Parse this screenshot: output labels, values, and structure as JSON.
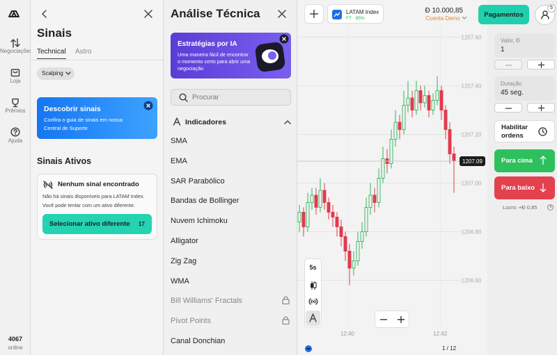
{
  "sidebar": {
    "nav": [
      "Negociações",
      "Loja",
      "Prêmios",
      "Ajuda"
    ],
    "online_count": "4067",
    "online_label": "online"
  },
  "signals": {
    "title": "Sinais",
    "tabs": [
      "Technical",
      "Astro"
    ],
    "filter": "Scalping",
    "banner_title": "Descobrir sinais",
    "banner_text": "Confira o guia de sinais em nossa Central de Suporte",
    "section": "Sinais Ativos",
    "empty_title": "Nenhum sinal encontrado",
    "empty_text": "Não há sinais disponíveis para LATAM Index. Você pode tentar com um ativo diferente.",
    "button": "Selecionar ativo diferente",
    "button_badge": "17"
  },
  "analysis": {
    "title": "Análise Técnica",
    "promo_title": "Estratégias por IA",
    "promo_text": "Uma maneira fácil de encontrar o momento certo para abrir uma negociação",
    "search_placeholder": "Procurar",
    "section": "Indicadores",
    "indicators": [
      {
        "label": "SMA",
        "locked": false
      },
      {
        "label": "EMA",
        "locked": false
      },
      {
        "label": "SAR Parabólico",
        "locked": false
      },
      {
        "label": "Bandas de Bollinger",
        "locked": false
      },
      {
        "label": "Nuvem Ichimoku",
        "locked": false
      },
      {
        "label": "Alligator",
        "locked": false
      },
      {
        "label": "Zig Zag",
        "locked": false
      },
      {
        "label": "WMA",
        "locked": false
      },
      {
        "label": "Bill Williams' Fractals",
        "locked": true
      },
      {
        "label": "Pivot Points",
        "locked": true
      },
      {
        "label": "Canal Donchian",
        "locked": false
      }
    ]
  },
  "topbar": {
    "asset": "LATAM Index",
    "asset_sub": "FT · 85%",
    "balance": "Đ 10.000,85",
    "account": "Cuenta Demo",
    "payments": "Pagamentos",
    "notifications": "5"
  },
  "trade": {
    "amount_label": "Valor, Đ",
    "amount": "1",
    "duration_label": "Duração",
    "duration": "45 seg.",
    "orders": "Habilitar ordens",
    "up": "Para cima",
    "down": "Para baixo",
    "profit": "Lucro: +Đ 0,85"
  },
  "chart_tools": {
    "interval": "5s",
    "page": "1 / 12"
  },
  "chart_data": {
    "type": "candlestick",
    "up_color": "#2fb45a",
    "down_color": "#e03b4c",
    "grid": true,
    "ylim": [
      1206.55,
      1207.65
    ],
    "yticks": [
      {
        "value": 1207.6,
        "label": "1207.60"
      },
      {
        "value": 1207.4,
        "label": "1207.40"
      },
      {
        "value": 1207.2,
        "label": "1207.20"
      },
      {
        "value": 1207,
        "label": "1207.00"
      },
      {
        "value": 1206.8,
        "label": "1206.80"
      },
      {
        "value": 1206.6,
        "label": "1206.60"
      }
    ],
    "xlim": [
      -0.5,
      37.5
    ],
    "xticks": [
      {
        "value": 11.5,
        "label": "12:40"
      },
      {
        "value": 33.7,
        "label": "12:42"
      }
    ],
    "last_price": 1207.09,
    "candles": [
      {
        "open": 1206.84,
        "high": 1206.91,
        "low": 1206.8,
        "close": 1206.88
      },
      {
        "open": 1206.88,
        "high": 1206.9,
        "low": 1206.78,
        "close": 1206.82
      },
      {
        "open": 1206.82,
        "high": 1206.96,
        "low": 1206.8,
        "close": 1206.92
      },
      {
        "open": 1206.92,
        "high": 1206.98,
        "low": 1206.89,
        "close": 1206.95
      },
      {
        "open": 1206.95,
        "high": 1206.98,
        "low": 1206.87,
        "close": 1206.9
      },
      {
        "open": 1206.9,
        "high": 1207.02,
        "low": 1206.88,
        "close": 1206.97
      },
      {
        "open": 1206.97,
        "high": 1207.0,
        "low": 1206.89,
        "close": 1206.92
      },
      {
        "open": 1206.92,
        "high": 1206.94,
        "low": 1206.85,
        "close": 1206.88
      },
      {
        "open": 1206.88,
        "high": 1206.91,
        "low": 1206.82,
        "close": 1206.86
      },
      {
        "open": 1206.86,
        "high": 1206.88,
        "low": 1206.78,
        "close": 1206.82
      },
      {
        "open": 1206.82,
        "high": 1206.85,
        "low": 1206.74,
        "close": 1206.78
      },
      {
        "open": 1206.78,
        "high": 1206.8,
        "low": 1206.68,
        "close": 1206.72
      },
      {
        "open": 1206.72,
        "high": 1206.75,
        "low": 1206.58,
        "close": 1206.65
      },
      {
        "open": 1206.65,
        "high": 1206.72,
        "low": 1206.62,
        "close": 1206.68
      },
      {
        "open": 1206.68,
        "high": 1206.8,
        "low": 1206.66,
        "close": 1206.76
      },
      {
        "open": 1206.76,
        "high": 1206.84,
        "low": 1206.73,
        "close": 1206.8
      },
      {
        "open": 1206.8,
        "high": 1206.94,
        "low": 1206.78,
        "close": 1206.9
      },
      {
        "open": 1206.9,
        "high": 1207.0,
        "low": 1206.87,
        "close": 1206.95
      },
      {
        "open": 1206.95,
        "high": 1206.98,
        "low": 1206.88,
        "close": 1206.92
      },
      {
        "open": 1206.92,
        "high": 1207.06,
        "low": 1206.9,
        "close": 1207.02
      },
      {
        "open": 1207.02,
        "high": 1207.15,
        "low": 1207.0,
        "close": 1207.1
      },
      {
        "open": 1207.1,
        "high": 1207.14,
        "low": 1207.04,
        "close": 1207.08
      },
      {
        "open": 1207.08,
        "high": 1207.22,
        "low": 1207.06,
        "close": 1207.18
      },
      {
        "open": 1207.18,
        "high": 1207.3,
        "low": 1207.15,
        "close": 1207.25
      },
      {
        "open": 1207.25,
        "high": 1207.28,
        "low": 1207.18,
        "close": 1207.22
      },
      {
        "open": 1207.22,
        "high": 1207.38,
        "low": 1207.2,
        "close": 1207.32
      },
      {
        "open": 1207.32,
        "high": 1207.42,
        "low": 1207.29,
        "close": 1207.35
      },
      {
        "open": 1207.35,
        "high": 1207.38,
        "low": 1207.27,
        "close": 1207.3
      },
      {
        "open": 1207.3,
        "high": 1207.42,
        "low": 1207.28,
        "close": 1207.38
      },
      {
        "open": 1207.38,
        "high": 1207.4,
        "low": 1207.3,
        "close": 1207.33
      },
      {
        "open": 1207.33,
        "high": 1207.4,
        "low": 1207.31,
        "close": 1207.36
      },
      {
        "open": 1207.36,
        "high": 1207.38,
        "low": 1207.27,
        "close": 1207.3
      },
      {
        "open": 1207.3,
        "high": 1207.37,
        "low": 1207.28,
        "close": 1207.34
      },
      {
        "open": 1207.34,
        "high": 1207.44,
        "low": 1207.32,
        "close": 1207.38
      },
      {
        "open": 1207.38,
        "high": 1207.4,
        "low": 1207.26,
        "close": 1207.3
      },
      {
        "open": 1207.3,
        "high": 1207.32,
        "low": 1207.18,
        "close": 1207.22
      },
      {
        "open": 1207.22,
        "high": 1207.25,
        "low": 1207.08,
        "close": 1207.12
      },
      {
        "open": 1207.12,
        "high": 1207.15,
        "low": 1206.96,
        "close": 1207.09
      }
    ]
  }
}
